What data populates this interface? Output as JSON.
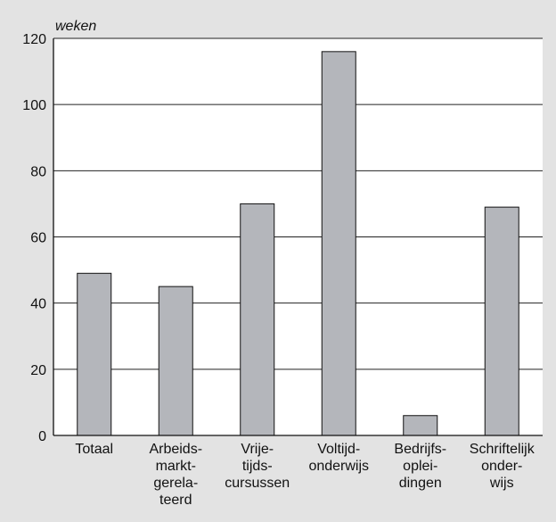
{
  "chart_data": {
    "type": "bar",
    "title": "",
    "xlabel": "",
    "ylabel": "weken",
    "ylim": [
      0,
      120
    ],
    "yticks": [
      0,
      20,
      40,
      60,
      80,
      100,
      120
    ],
    "grid": true,
    "legend": "none",
    "categories": [
      [
        "Totaal"
      ],
      [
        "Arbeids-",
        "markt-",
        "gerela-",
        "teerd"
      ],
      [
        "Vrije-",
        "tijds-",
        "cursussen"
      ],
      [
        "Voltijd-",
        "onderwijs"
      ],
      [
        "Bedrijfs-",
        "oplei-",
        "dingen"
      ],
      [
        "Schriftelijk",
        "onder-",
        "wijs"
      ]
    ],
    "series": [
      {
        "values": [
          49,
          45,
          70,
          116,
          6,
          69
        ],
        "color": "#b4b6bb"
      }
    ]
  },
  "colors": {
    "background": "#e3e3e3",
    "plot_area": "#ffffff",
    "axis": "#111111",
    "grid": "#222222",
    "bar_fill": "#b4b6bb",
    "bar_stroke": "#111111"
  }
}
